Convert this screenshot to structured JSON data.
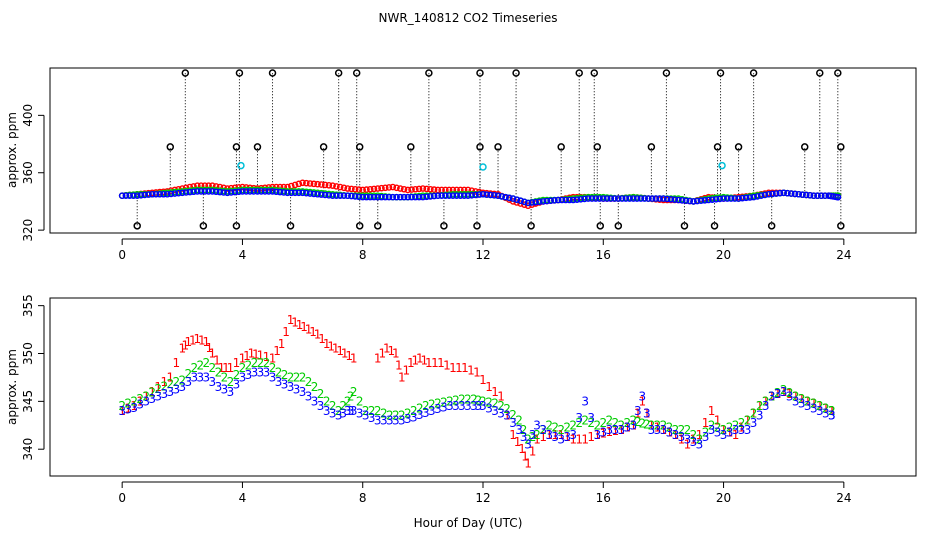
{
  "chart_data": {
    "type": "scatter",
    "title": "NWR_140812  CO2 Timeseries",
    "xlabel": "Hour of Day (UTC)",
    "xlim": [
      -2.4,
      26.4
    ],
    "xticks": [
      0,
      4,
      8,
      12,
      16,
      20,
      24
    ],
    "colors": {
      "red": "#ff0000",
      "green": "#00cc00",
      "blue": "#0000ff",
      "cyan": "#00bfd8",
      "black": "#000000",
      "line": "#000000"
    },
    "panels": [
      {
        "id": "top",
        "ylabel": "approx. ppm",
        "ylim": [
          318,
          433
        ],
        "yticks": [
          320,
          360,
          400
        ],
        "spike_baseline": 345,
        "spikes_high": [
          2.1,
          3.9,
          5.0,
          7.2,
          7.8,
          10.2,
          11.9,
          13.1,
          15.2,
          15.7,
          18.1,
          19.9,
          21.0,
          23.2,
          23.8
        ],
        "spikes_mid": [
          1.6,
          3.8,
          4.5,
          6.7,
          7.9,
          9.6,
          11.9,
          12.5,
          14.6,
          15.8,
          17.6,
          19.8,
          20.5,
          22.7,
          23.9
        ],
        "spikes_low": [
          0.5,
          2.7,
          3.8,
          5.6,
          7.9,
          8.5,
          10.7,
          11.8,
          13.6,
          15.9,
          16.5,
          18.7,
          19.7,
          21.6,
          23.9
        ],
        "cyan_points": [
          [
            3.95,
            365
          ],
          [
            12.0,
            364
          ],
          [
            19.95,
            365
          ]
        ],
        "series": [
          {
            "name": "1",
            "color": "red",
            "x": [
              0,
              0.5,
              1,
              1.5,
              2,
              2.5,
              3,
              3.5,
              4,
              4.5,
              5,
              5.5,
              6,
              6.5,
              7,
              7.5,
              8,
              8.5,
              9,
              9.5,
              10,
              10.5,
              11,
              11.5,
              12,
              12.5,
              13,
              13.5,
              14,
              14.5,
              15,
              15.5,
              16,
              16.5,
              17,
              17.5,
              18,
              18.5,
              19,
              19.5,
              20,
              20.5,
              21,
              21.5,
              22,
              22.5,
              23,
              23.5,
              23.8
            ],
            "y": [
              344,
              345,
              346,
              347,
              349,
              351,
              351,
              349,
              350,
              349,
              350,
              350,
              353,
              352,
              351,
              349,
              348,
              349,
              350,
              348,
              349,
              348,
              348,
              348,
              346,
              345,
              340,
              337,
              340,
              341,
              343,
              343,
              342,
              342,
              343,
              342,
              341,
              341,
              340,
              343,
              342,
              343,
              344,
              346,
              346,
              345,
              344,
              344,
              344
            ]
          },
          {
            "name": "2",
            "color": "green",
            "x": [
              0,
              0.5,
              1,
              1.5,
              2,
              2.5,
              3,
              3.5,
              4,
              4.5,
              5,
              5.5,
              6,
              6.5,
              7,
              7.5,
              8,
              8.5,
              9,
              9.5,
              10,
              10.5,
              11,
              11.5,
              12,
              12.5,
              13,
              13.5,
              14,
              14.5,
              15,
              15.5,
              16,
              16.5,
              17,
              17.5,
              18,
              18.5,
              19,
              19.5,
              20,
              20.5,
              21,
              21.5,
              22,
              22.5,
              23,
              23.5,
              23.8
            ],
            "y": [
              344,
              345,
              345,
              346,
              347,
              348,
              348,
              347,
              348,
              348,
              348,
              347,
              347,
              346,
              345,
              344,
              344,
              344,
              343,
              343,
              344,
              344,
              345,
              345,
              345,
              344,
              342,
              339,
              341,
              341,
              342,
              343,
              343,
              342,
              343,
              342,
              342,
              342,
              340,
              342,
              343,
              342,
              344,
              345,
              346,
              345,
              344,
              344,
              344
            ]
          },
          {
            "name": "3",
            "color": "blue",
            "x": [
              0,
              0.5,
              1,
              1.5,
              2,
              2.5,
              3,
              3.5,
              4,
              4.5,
              5,
              5.5,
              6,
              6.5,
              7,
              7.5,
              8,
              8.5,
              9,
              9.5,
              10,
              10.5,
              11,
              11.5,
              12,
              12.5,
              13,
              13.5,
              14,
              14.5,
              15,
              15.5,
              16,
              16.5,
              17,
              17.5,
              18,
              18.5,
              19,
              19.5,
              20,
              20.5,
              21,
              21.5,
              22,
              22.5,
              23,
              23.5,
              23.8
            ],
            "y": [
              344,
              344,
              345,
              345,
              346,
              347,
              347,
              346,
              347,
              347,
              347,
              346,
              346,
              345,
              344,
              344,
              343,
              343,
              343,
              343,
              343,
              344,
              344,
              344,
              345,
              344,
              342,
              339,
              340,
              341,
              341,
              342,
              342,
              342,
              342,
              342,
              342,
              341,
              340,
              341,
              342,
              342,
              343,
              345,
              346,
              345,
              344,
              344,
              343
            ]
          }
        ]
      },
      {
        "id": "bottom",
        "ylabel": "approx. ppm",
        "ylim": [
          337.2,
          355.8
        ],
        "yticks": [
          340,
          345,
          350,
          355
        ],
        "series": [
          {
            "name": "1",
            "color": "red",
            "x": [
              0,
              0.4,
              0.8,
              1.2,
              1.6,
              2.0,
              2.2,
              2.5,
              2.8,
              3.0,
              3.3,
              3.6,
              4.0,
              4.3,
              4.6,
              5.0,
              5.3,
              5.6,
              5.9,
              6.2,
              6.5,
              6.8,
              7.1,
              7.4,
              7.7,
              8.5,
              8.8,
              9.1,
              9.3,
              9.6,
              9.9,
              10.2,
              10.6,
              11.0,
              11.4,
              11.8,
              12.2,
              12.6,
              13.0,
              13.3,
              13.5,
              13.8,
              14.2,
              14.6,
              15.0,
              15.4,
              15.8,
              16.2,
              16.6,
              17.0,
              17.3,
              17.6,
              18.0,
              18.4,
              18.8,
              19.2,
              19.6,
              20.0,
              20.4,
              20.8,
              21.2,
              21.6,
              22.0,
              22.4,
              22.8,
              23.2,
              23.6
            ],
            "y": [
              344.0,
              344.5,
              345.5,
              346.5,
              347.5,
              350.5,
              351.2,
              351.5,
              351.2,
              350.0,
              348.5,
              348.5,
              349.5,
              350.0,
              349.8,
              349.5,
              351.0,
              353.5,
              353.0,
              352.5,
              352.0,
              351.0,
              350.5,
              350.0,
              349.5,
              349.5,
              350.5,
              350.0,
              347.5,
              349.0,
              349.5,
              349.0,
              349.0,
              348.5,
              348.5,
              348.0,
              346.5,
              345.5,
              341.5,
              340.0,
              338.5,
              341.0,
              341.5,
              341.5,
              341.0,
              341.0,
              341.5,
              341.8,
              342.0,
              342.5,
              345.0,
              342.5,
              342.0,
              341.5,
              340.5,
              341.5,
              344.0,
              342.0,
              341.5,
              343.0,
              344.5,
              345.5,
              346.0,
              345.5,
              345.0,
              344.5,
              344.0
            ]
          },
          {
            "name": "2",
            "color": "green",
            "x": [
              0,
              0.4,
              0.8,
              1.2,
              1.6,
              2.0,
              2.4,
              2.8,
              3.2,
              3.6,
              4.0,
              4.4,
              4.8,
              5.2,
              5.6,
              6.0,
              6.4,
              6.8,
              7.2,
              7.5,
              7.7,
              8.1,
              8.5,
              8.9,
              9.3,
              9.7,
              10.1,
              10.5,
              10.9,
              11.3,
              11.7,
              12.0,
              12.4,
              12.8,
              13.2,
              13.5,
              13.8,
              14.2,
              14.6,
              15.0,
              15.4,
              15.8,
              16.2,
              16.6,
              17.0,
              17.3,
              17.6,
              18.0,
              18.4,
              18.8,
              19.2,
              19.6,
              20.0,
              20.4,
              20.8,
              21.2,
              21.6,
              22.0,
              22.4,
              22.8,
              23.2,
              23.6
            ],
            "y": [
              344.5,
              345.0,
              345.5,
              346.3,
              346.8,
              347.2,
              348.5,
              349.0,
              348.0,
              347.0,
              348.5,
              349.0,
              349.0,
              348.0,
              347.5,
              347.5,
              346.5,
              345.0,
              344.0,
              345.0,
              346.0,
              344.0,
              344.0,
              343.5,
              343.5,
              344.0,
              344.5,
              344.8,
              345.0,
              345.2,
              345.2,
              345.0,
              344.8,
              344.2,
              343.0,
              341.0,
              341.5,
              342.5,
              342.0,
              342.5,
              343.0,
              342.5,
              343.0,
              342.5,
              343.0,
              342.7,
              342.5,
              342.5,
              342.0,
              342.0,
              341.0,
              342.5,
              342.0,
              342.5,
              343.0,
              344.5,
              345.5,
              346.2,
              345.5,
              345.0,
              344.5,
              344.0
            ]
          },
          {
            "name": "3",
            "color": "blue",
            "x": [
              0,
              0.4,
              0.8,
              1.2,
              1.6,
              2.0,
              2.4,
              2.8,
              3.2,
              3.6,
              4.0,
              4.4,
              4.8,
              5.2,
              5.6,
              6.0,
              6.4,
              6.8,
              7.2,
              7.5,
              7.7,
              8.1,
              8.5,
              8.9,
              9.3,
              9.7,
              10.1,
              10.5,
              10.9,
              11.3,
              11.7,
              12.0,
              12.4,
              12.8,
              13.2,
              13.5,
              13.8,
              14.2,
              14.6,
              15.0,
              15.4,
              15.8,
              16.2,
              16.6,
              17.0,
              17.3,
              17.6,
              18.0,
              18.4,
              18.8,
              19.2,
              19.6,
              20.0,
              20.4,
              20.8,
              21.2,
              21.6,
              22.0,
              22.4,
              22.8,
              23.2,
              23.6
            ],
            "y": [
              344.0,
              344.3,
              345.0,
              345.5,
              346.0,
              346.5,
              347.5,
              347.5,
              346.5,
              346.0,
              347.5,
              348.0,
              348.0,
              347.0,
              346.5,
              346.0,
              345.0,
              344.0,
              343.5,
              344.0,
              344.0,
              343.5,
              343.0,
              343.0,
              343.0,
              343.3,
              343.8,
              344.2,
              344.5,
              344.5,
              344.5,
              344.5,
              344.0,
              343.5,
              342.0,
              340.5,
              342.5,
              341.5,
              341.0,
              341.5,
              345.0,
              341.5,
              342.0,
              342.0,
              342.5,
              345.5,
              342.0,
              342.0,
              341.5,
              341.0,
              340.5,
              342.0,
              341.5,
              342.0,
              342.0,
              343.5,
              345.5,
              346.0,
              345.0,
              344.5,
              344.0,
              343.5
            ]
          }
        ]
      }
    ]
  }
}
